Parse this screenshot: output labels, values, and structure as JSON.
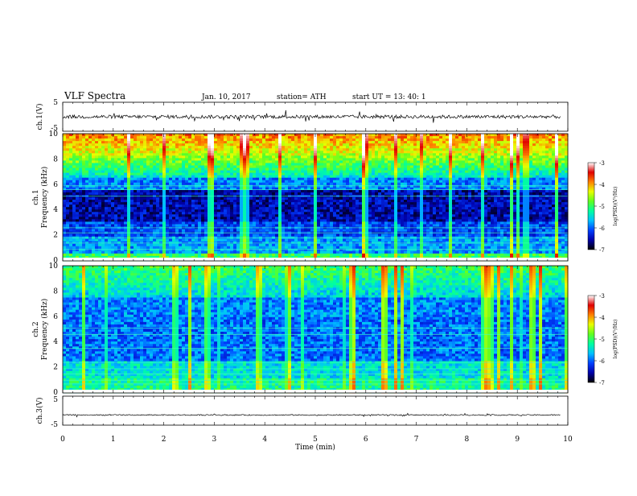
{
  "header": {
    "title": "VLF  Spectra",
    "date": "Jan. 10, 2017",
    "station": "station= ATH",
    "start_time": "start  UT  =   13: 40: 1"
  },
  "colorbar": {
    "label": "log(PSD)(V²/Hz)",
    "ticks": [
      "-3",
      "-4",
      "-5",
      "-6",
      "-7"
    ],
    "colors": [
      "#000000",
      "#0000aa",
      "#0040ff",
      "#00c0ff",
      "#00ffa0",
      "#60ff20",
      "#e8ff00",
      "#ff8000",
      "#e00000",
      "#ffffff"
    ]
  },
  "chart_data": [
    {
      "type": "line",
      "panel": "ch1-waveform",
      "ylabel": "ch.1(V)",
      "yticks": [
        "5",
        "-5"
      ],
      "ylim": [
        -5,
        5
      ],
      "mean_level": 0,
      "xlim": [
        0,
        10
      ]
    },
    {
      "type": "heatmap",
      "panel": "ch1-spectrogram",
      "ylabel": "ch.1\nFrequency (kHz)",
      "ylim": [
        0,
        10
      ],
      "yticks": [
        "0",
        "2",
        "4",
        "6",
        "8",
        "10"
      ],
      "xlim": [
        0,
        10
      ],
      "zlim": [
        -7,
        -3
      ]
    },
    {
      "type": "heatmap",
      "panel": "ch2-spectrogram",
      "ylabel": "ch.2\nFrequency (kHz)",
      "ylim": [
        0,
        10
      ],
      "yticks": [
        "0",
        "2",
        "4",
        "6",
        "8",
        "10"
      ],
      "xlim": [
        0,
        10
      ],
      "zlim": [
        -7,
        -3
      ]
    },
    {
      "type": "line",
      "panel": "ch3-waveform",
      "ylabel": "ch.3(V)",
      "yticks": [
        "5",
        "-5"
      ],
      "ylim": [
        -5,
        5
      ],
      "mean_level": -1.5,
      "xlim": [
        0,
        10
      ]
    }
  ],
  "xaxis": {
    "label": "Time  (min)",
    "ticks": [
      "0",
      "1",
      "2",
      "3",
      "4",
      "5",
      "6",
      "7",
      "8",
      "9",
      "10"
    ]
  }
}
